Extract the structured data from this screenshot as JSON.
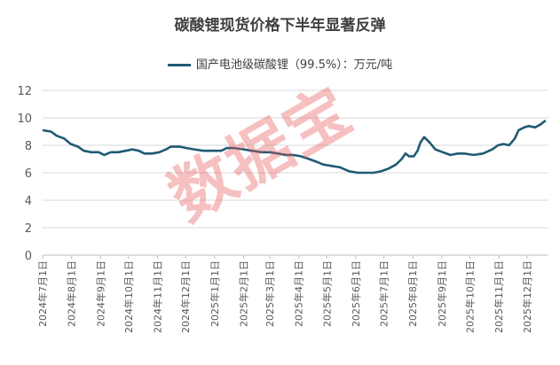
{
  "watermark": "数据宝",
  "chart_data": {
    "type": "line",
    "title": "碳酸锂现货价格下半年显著反弹",
    "legend_position": "top",
    "series_color": "#1f5a73",
    "grid": "horizontal",
    "ylim": [
      0,
      12
    ],
    "yticks": [
      0,
      2,
      4,
      6,
      8,
      10,
      12
    ],
    "xticks": [
      "2024年7月1日",
      "2024年8月1日",
      "2024年9月1日",
      "2024年10月1日",
      "2024年11月1日",
      "2024年12月1日",
      "2025年1月1日",
      "2025年2月1日",
      "2025年3月1日",
      "2025年4月1日",
      "2025年5月1日",
      "2025年6月1日",
      "2025年7月1日",
      "2025年8月1日",
      "2025年9月1日",
      "2025年10月1日",
      "2025年11月1日",
      "2025年12月1日"
    ],
    "series": [
      {
        "name": "国产电池级碳酸锂（99.5%）：万元/吨",
        "points": [
          [
            "2024-07-01",
            9.1
          ],
          [
            "2024-07-10",
            9.0
          ],
          [
            "2024-07-16",
            8.7
          ],
          [
            "2024-07-24",
            8.5
          ],
          [
            "2024-07-31",
            8.1
          ],
          [
            "2024-08-08",
            7.9
          ],
          [
            "2024-08-14",
            7.6
          ],
          [
            "2024-08-22",
            7.5
          ],
          [
            "2024-08-30",
            7.5
          ],
          [
            "2024-09-05",
            7.3
          ],
          [
            "2024-09-12",
            7.5
          ],
          [
            "2024-09-20",
            7.5
          ],
          [
            "2024-09-28",
            7.6
          ],
          [
            "2024-10-05",
            7.7
          ],
          [
            "2024-10-12",
            7.6
          ],
          [
            "2024-10-18",
            7.4
          ],
          [
            "2024-10-26",
            7.4
          ],
          [
            "2024-11-03",
            7.5
          ],
          [
            "2024-11-10",
            7.7
          ],
          [
            "2024-11-15",
            7.9
          ],
          [
            "2024-11-25",
            7.9
          ],
          [
            "2024-12-02",
            7.8
          ],
          [
            "2024-12-10",
            7.7
          ],
          [
            "2024-12-20",
            7.6
          ],
          [
            "2024-12-30",
            7.6
          ],
          [
            "2025-01-08",
            7.6
          ],
          [
            "2025-01-14",
            7.8
          ],
          [
            "2025-01-22",
            7.8
          ],
          [
            "2025-02-01",
            7.7
          ],
          [
            "2025-02-10",
            7.6
          ],
          [
            "2025-02-20",
            7.5
          ],
          [
            "2025-03-01",
            7.5
          ],
          [
            "2025-03-10",
            7.4
          ],
          [
            "2025-03-18",
            7.3
          ],
          [
            "2025-03-26",
            7.3
          ],
          [
            "2025-04-03",
            7.2
          ],
          [
            "2025-04-12",
            7.0
          ],
          [
            "2025-04-20",
            6.8
          ],
          [
            "2025-04-27",
            6.6
          ],
          [
            "2025-05-06",
            6.5
          ],
          [
            "2025-05-15",
            6.4
          ],
          [
            "2025-05-25",
            6.1
          ],
          [
            "2025-06-03",
            6.0
          ],
          [
            "2025-06-12",
            6.0
          ],
          [
            "2025-06-20",
            6.0
          ],
          [
            "2025-06-28",
            6.1
          ],
          [
            "2025-07-06",
            6.3
          ],
          [
            "2025-07-14",
            6.6
          ],
          [
            "2025-07-20",
            7.0
          ],
          [
            "2025-07-24",
            7.4
          ],
          [
            "2025-07-28",
            7.2
          ],
          [
            "2025-08-02",
            7.2
          ],
          [
            "2025-08-06",
            7.6
          ],
          [
            "2025-08-09",
            8.2
          ],
          [
            "2025-08-13",
            8.6
          ],
          [
            "2025-08-19",
            8.2
          ],
          [
            "2025-08-25",
            7.7
          ],
          [
            "2025-09-02",
            7.5
          ],
          [
            "2025-09-10",
            7.3
          ],
          [
            "2025-09-18",
            7.4
          ],
          [
            "2025-09-25",
            7.4
          ],
          [
            "2025-10-05",
            7.3
          ],
          [
            "2025-10-15",
            7.4
          ],
          [
            "2025-10-25",
            7.7
          ],
          [
            "2025-10-31",
            8.0
          ],
          [
            "2025-11-06",
            8.1
          ],
          [
            "2025-11-12",
            8.0
          ],
          [
            "2025-11-18",
            8.5
          ],
          [
            "2025-11-22",
            9.1
          ],
          [
            "2025-11-28",
            9.3
          ],
          [
            "2025-12-03",
            9.4
          ],
          [
            "2025-12-10",
            9.3
          ],
          [
            "2025-12-15",
            9.5
          ],
          [
            "2025-12-21",
            9.8
          ]
        ]
      }
    ]
  }
}
